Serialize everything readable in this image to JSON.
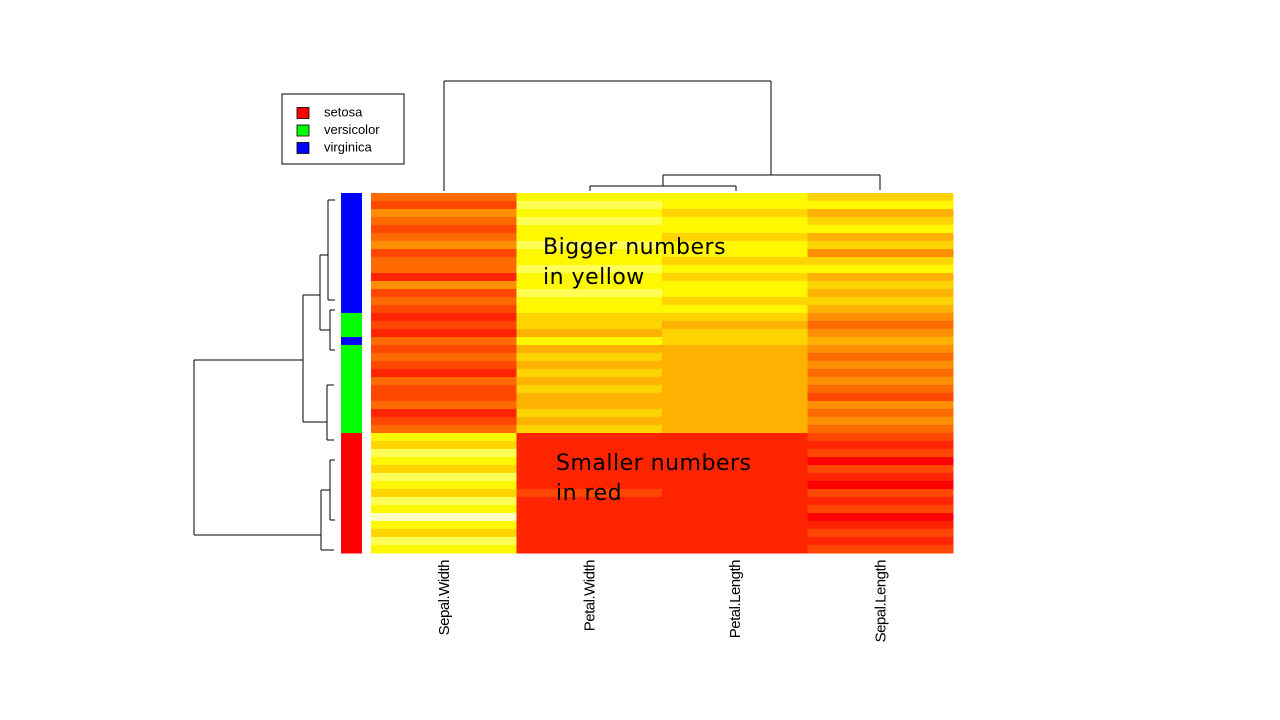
{
  "chart_data": {
    "type": "heatmap",
    "columns": [
      "Sepal.Width",
      "Petal.Width",
      "Petal.Length",
      "Sepal.Length"
    ],
    "groups": [
      {
        "name": "setosa",
        "color": "#ff0000"
      },
      {
        "name": "versicolor",
        "color": "#00ff00"
      },
      {
        "name": "virginica",
        "color": "#0000ff"
      }
    ],
    "row_groups": [
      2,
      2,
      2,
      2,
      2,
      2,
      2,
      2,
      2,
      2,
      2,
      2,
      2,
      2,
      2,
      1,
      1,
      1,
      2,
      1,
      1,
      1,
      1,
      1,
      1,
      1,
      1,
      1,
      1,
      1,
      0,
      0,
      0,
      0,
      0,
      0,
      0,
      0,
      0,
      0,
      0,
      0,
      0,
      0,
      0
    ],
    "values": [
      [
        4,
        8,
        8,
        7
      ],
      [
        3,
        9,
        8,
        8
      ],
      [
        5,
        8,
        7,
        6
      ],
      [
        4,
        9,
        8,
        7
      ],
      [
        3,
        8,
        8,
        8
      ],
      [
        4,
        8,
        7,
        6
      ],
      [
        5,
        9,
        8,
        7
      ],
      [
        3,
        8,
        8,
        5
      ],
      [
        4,
        8,
        7,
        7
      ],
      [
        4,
        9,
        8,
        8
      ],
      [
        2,
        8,
        7,
        6
      ],
      [
        5,
        8,
        8,
        7
      ],
      [
        3,
        9,
        8,
        6
      ],
      [
        4,
        8,
        7,
        7
      ],
      [
        3,
        8,
        8,
        6
      ],
      [
        2,
        7,
        7,
        5
      ],
      [
        3,
        7,
        6,
        4
      ],
      [
        2,
        6,
        7,
        5
      ],
      [
        4,
        8,
        7,
        6
      ],
      [
        3,
        6,
        6,
        5
      ],
      [
        4,
        7,
        6,
        4
      ],
      [
        3,
        6,
        6,
        5
      ],
      [
        2,
        7,
        6,
        4
      ],
      [
        4,
        6,
        6,
        5
      ],
      [
        3,
        7,
        6,
        4
      ],
      [
        3,
        6,
        6,
        3
      ],
      [
        4,
        6,
        6,
        5
      ],
      [
        2,
        7,
        6,
        4
      ],
      [
        3,
        6,
        6,
        5
      ],
      [
        4,
        7,
        6,
        4
      ],
      [
        8,
        2,
        2,
        3
      ],
      [
        7,
        2,
        2,
        2
      ],
      [
        9,
        2,
        2,
        3
      ],
      [
        8,
        2,
        2,
        1
      ],
      [
        7,
        2,
        2,
        3
      ],
      [
        9,
        2,
        2,
        2
      ],
      [
        8,
        2,
        2,
        1
      ],
      [
        7,
        3,
        2,
        3
      ],
      [
        9,
        2,
        2,
        2
      ],
      [
        8,
        2,
        2,
        3
      ],
      [
        10,
        2,
        2,
        1
      ],
      [
        8,
        2,
        2,
        2
      ],
      [
        7,
        2,
        2,
        3
      ],
      [
        9,
        2,
        2,
        2
      ],
      [
        8,
        2,
        2,
        3
      ]
    ],
    "palette": [
      "#ff0000",
      "#ff4000",
      "#ff8000",
      "#ffbf00",
      "#ffff00",
      "#ffffbf"
    ],
    "annotations": [
      [
        "Bigger numbers",
        "in yellow"
      ],
      [
        "Smaller numbers",
        "in red"
      ]
    ]
  }
}
